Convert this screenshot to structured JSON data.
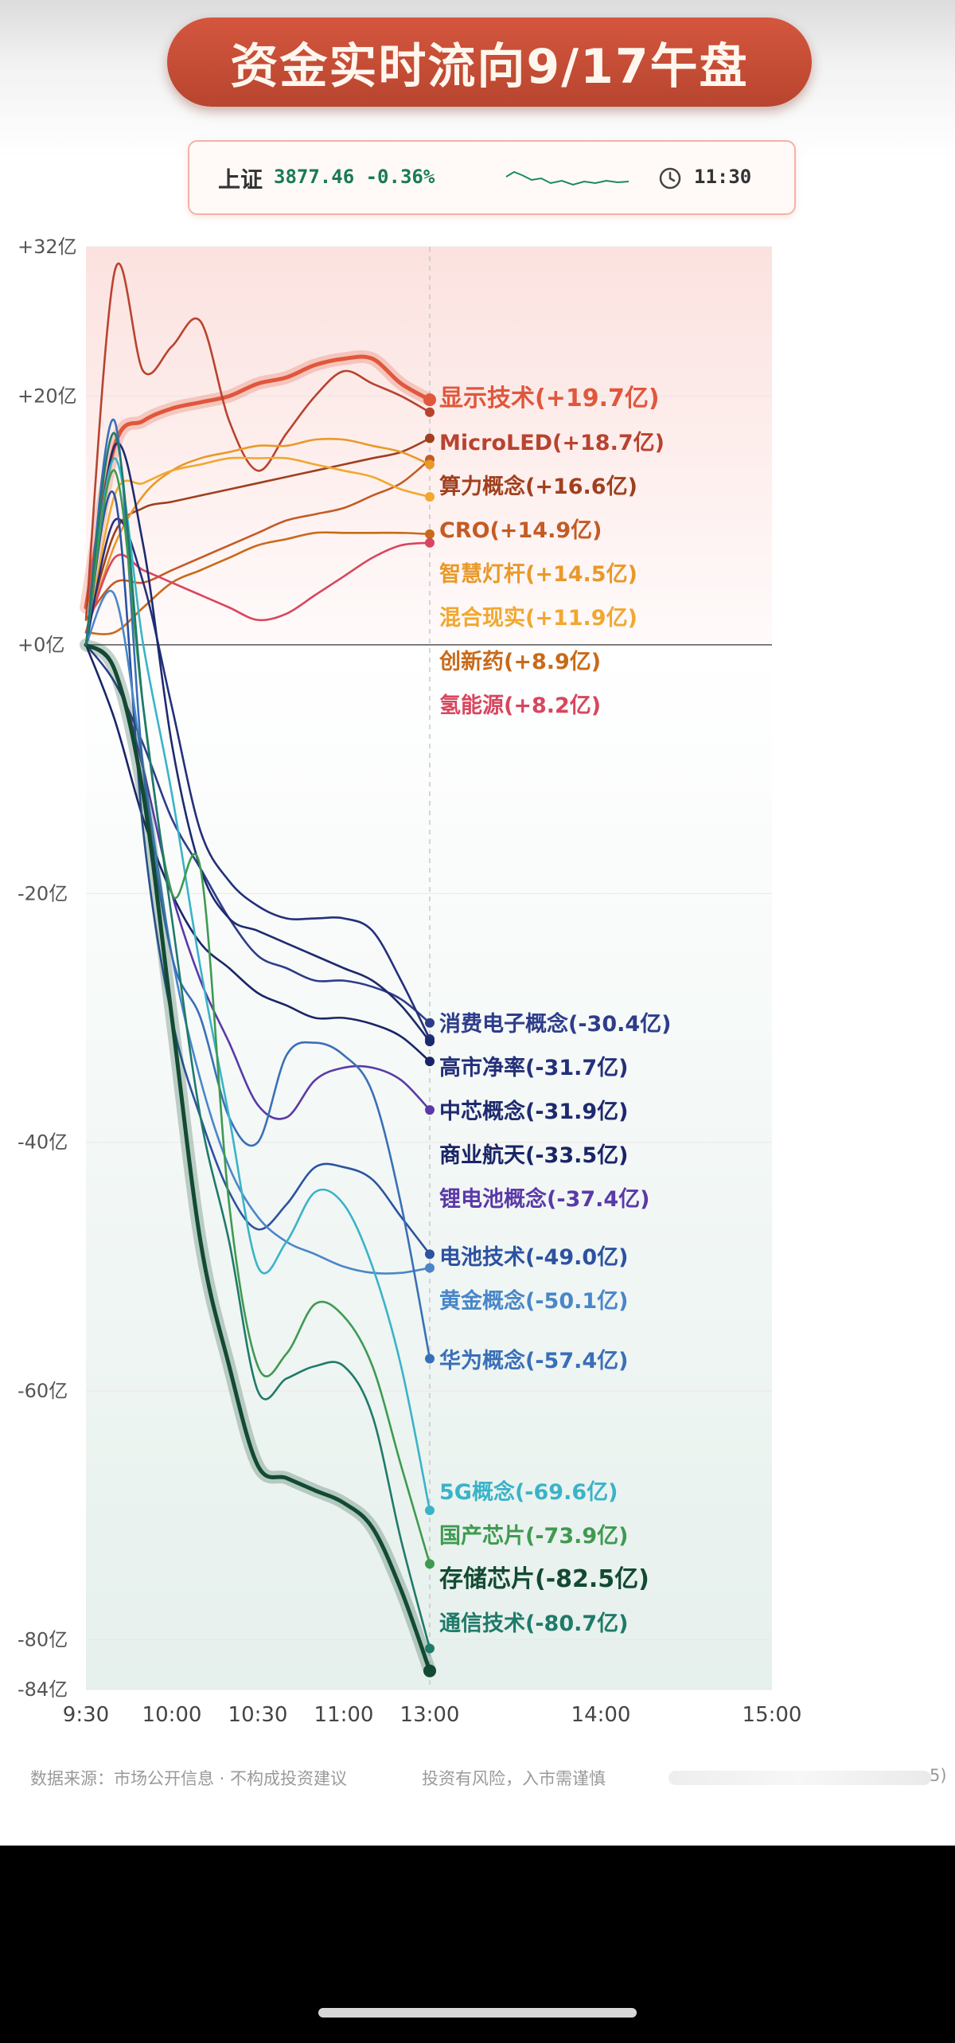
{
  "header": {
    "title": "资金实时流向9/17午盘"
  },
  "index_bar": {
    "name": "上证",
    "value": "3877.46 -0.36%",
    "time": "11:30",
    "clock_icon": "clock-icon",
    "trend_color": "#1a8a5a"
  },
  "chart_data": {
    "type": "line",
    "x_unit": "time",
    "x_ticks": [
      "9:30",
      "10:00",
      "10:30",
      "11:00",
      "13:00",
      "14:00",
      "15:00"
    ],
    "y_ticks": [
      "+32亿",
      "+20亿",
      "+0亿",
      "-20亿",
      "-40亿",
      "-60亿",
      "-80亿",
      "-84亿"
    ],
    "ylim": [
      -84,
      32
    ],
    "grid": true,
    "current_time": "13:00",
    "x": [
      "9:30",
      "9:40",
      "9:50",
      "10:00",
      "10:10",
      "10:20",
      "10:30",
      "10:40",
      "10:50",
      "11:00",
      "11:10",
      "11:20",
      "13:00"
    ],
    "series": [
      {
        "name": "显示技术",
        "final_label": "(+19.7亿)",
        "color": "#e0573c",
        "highlight": true,
        "values": [
          3,
          16,
          18,
          19,
          19.5,
          20,
          21,
          21.5,
          22.5,
          23,
          23,
          21,
          19.7
        ]
      },
      {
        "name": "MicroLED",
        "final_label": "(+18.7亿)",
        "color": "#b8432f",
        "values": [
          2,
          30,
          22,
          24,
          26,
          18,
          14,
          17,
          20,
          22,
          21,
          20,
          18.7
        ]
      },
      {
        "name": "算力概念",
        "final_label": "(+16.6亿)",
        "color": "#a0401e",
        "values": [
          1,
          9,
          11,
          11.5,
          12,
          12.5,
          13,
          13.5,
          14,
          14.5,
          15,
          15.5,
          16.6
        ]
      },
      {
        "name": "CRO",
        "final_label": "(+14.9亿)",
        "color": "#c45b25",
        "values": [
          2,
          5,
          5,
          6,
          7,
          8,
          9,
          10,
          10.5,
          11,
          12,
          13,
          14.9
        ]
      },
      {
        "name": "智慧灯杆",
        "final_label": "(+14.5亿)",
        "color": "#e8992a",
        "values": [
          1,
          8,
          12,
          14,
          15,
          15.5,
          16,
          16,
          16.5,
          16.5,
          16,
          15.5,
          14.5
        ]
      },
      {
        "name": "混合现实",
        "final_label": "(+11.9亿)",
        "color": "#f0a830",
        "values": [
          0,
          12,
          13,
          14,
          14.5,
          15,
          15,
          15,
          14.5,
          14,
          13.5,
          12.5,
          11.9
        ]
      },
      {
        "name": "创新药",
        "final_label": "(+8.9亿)",
        "color": "#c96a18",
        "values": [
          1,
          1,
          3,
          5,
          6,
          7,
          8,
          8.5,
          9,
          9,
          9,
          9,
          8.9
        ]
      },
      {
        "name": "氢能源",
        "final_label": "(+8.2亿)",
        "color": "#d8465e",
        "values": [
          1,
          7,
          6,
          5,
          4,
          3,
          2,
          2.5,
          4,
          5.5,
          7,
          8,
          8.2
        ]
      },
      {
        "name": "消费电子概念",
        "final_label": "(-30.4亿)",
        "color": "#2e3d8a",
        "values": [
          0,
          -3,
          -8,
          -14,
          -18,
          -22,
          -25,
          -26,
          -27,
          -27,
          -27.5,
          -28.5,
          -30.4
        ]
      },
      {
        "name": "高市净率",
        "final_label": "(-31.7亿)",
        "color": "#24307a",
        "values": [
          0,
          10,
          5,
          -5,
          -15,
          -19,
          -21,
          -22,
          -22,
          -22,
          -23,
          -27,
          -31.7
        ]
      },
      {
        "name": "中芯概念",
        "final_label": "(-31.9亿)",
        "color": "#1e2a6e",
        "values": [
          0,
          16,
          8,
          -8,
          -18,
          -22,
          -23,
          -24,
          -25,
          -26,
          -27,
          -29,
          -31.9
        ]
      },
      {
        "name": "商业航天",
        "final_label": "(-33.5亿)",
        "color": "#1a2568",
        "values": [
          0,
          -6,
          -14,
          -20,
          -24,
          -26,
          -28,
          -29,
          -30,
          -30,
          -30.5,
          -31.5,
          -33.5
        ]
      },
      {
        "name": "锂电池概念",
        "final_label": "(-37.4亿)",
        "color": "#5a3aa8",
        "values": [
          0,
          -2,
          -10,
          -20,
          -27,
          -32,
          -37,
          -38,
          -35,
          -34,
          -34,
          -35,
          -37.4
        ]
      },
      {
        "name": "电池技术",
        "final_label": "(-49.0亿)",
        "color": "#2c52a0",
        "values": [
          0,
          12,
          -15,
          -30,
          -38,
          -44,
          -47,
          -45,
          -42,
          -42,
          -43,
          -46,
          -49.0
        ]
      },
      {
        "name": "黄金概念",
        "final_label": "(-50.1亿)",
        "color": "#4a86c8",
        "values": [
          0,
          4,
          -10,
          -25,
          -35,
          -42,
          -46,
          -48,
          -49,
          -50,
          -50.5,
          -50.5,
          -50.1
        ]
      },
      {
        "name": "华为概念",
        "final_label": "(-57.4亿)",
        "color": "#3a6fb8",
        "values": [
          0,
          18,
          -10,
          -25,
          -30,
          -38,
          -40,
          -33,
          -32,
          -33,
          -36,
          -45,
          -57.4
        ]
      },
      {
        "name": "5G概念",
        "final_label": "(-69.6亿)",
        "color": "#3ab3c8",
        "values": [
          0,
          15,
          0,
          -12,
          -26,
          -38,
          -50,
          -48,
          -44,
          -45,
          -50,
          -58,
          -69.6
        ]
      },
      {
        "name": "国产芯片",
        "final_label": "(-73.9亿)",
        "color": "#3f9a50",
        "values": [
          0,
          14,
          -5,
          -20,
          -18,
          -45,
          -58,
          -57,
          -53,
          -54,
          -58,
          -66,
          -73.9
        ]
      },
      {
        "name": "存储芯片",
        "final_label": "(-82.5亿)",
        "color": "#124a32",
        "highlight": true,
        "values": [
          0,
          -2,
          -12,
          -30,
          -48,
          -58,
          -66,
          -67,
          -68,
          -69,
          -71,
          -76,
          -82.5
        ]
      },
      {
        "name": "通信技术",
        "final_label": "(-80.7亿)",
        "color": "#1f7a6a",
        "values": [
          0,
          17,
          -5,
          -22,
          -38,
          -48,
          -60,
          -59,
          -58,
          -58,
          -62,
          -72,
          -80.7
        ]
      }
    ]
  },
  "footer": {
    "source": "数据来源：市场公开信息 · 不构成投资建议",
    "risk": "投资有风险，入市需谨慎",
    "tail": "5)"
  }
}
